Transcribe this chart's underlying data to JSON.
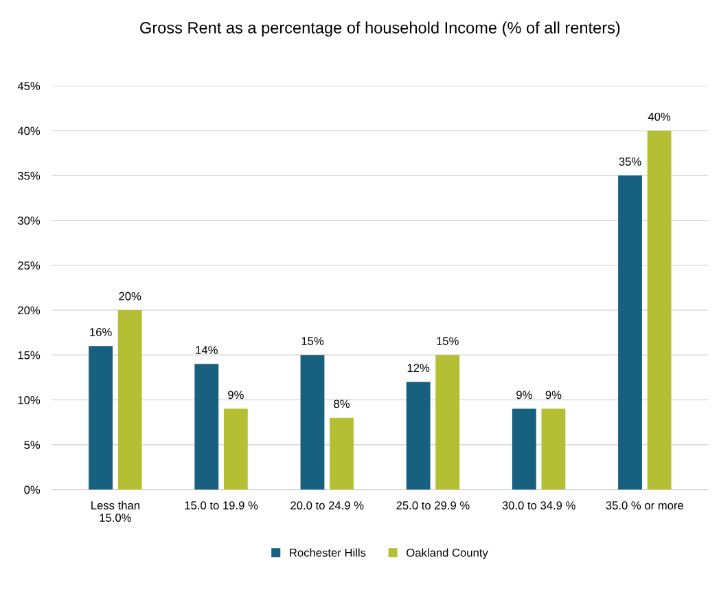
{
  "chart_data": {
    "type": "bar",
    "title": "Gross Rent as a percentage of household Income (% of all renters)",
    "categories": [
      "Less than\n15.0%",
      "15.0 to 19.9 %",
      "20.0 to 24.9 %",
      "25.0 to 29.9 %",
      "30.0 to 34.9 %",
      "35.0 % or more"
    ],
    "series": [
      {
        "name": "Rochester Hills",
        "color": "#17607f",
        "values": [
          16,
          14,
          15,
          12,
          9,
          35
        ],
        "value_labels": [
          "16%",
          "14%",
          "15%",
          "12%",
          "9%",
          "35%"
        ]
      },
      {
        "name": "Oakland County",
        "color": "#b5bf34",
        "values": [
          20,
          9,
          8,
          15,
          9,
          40
        ],
        "value_labels": [
          "20%",
          "9%",
          "8%",
          "15%",
          "9%",
          "40%"
        ]
      }
    ],
    "ylim": [
      0,
      45
    ],
    "yticks": [
      {
        "value": 0,
        "label": "0%"
      },
      {
        "value": 5,
        "label": "5%"
      },
      {
        "value": 10,
        "label": "10%"
      },
      {
        "value": 15,
        "label": "15%"
      },
      {
        "value": 20,
        "label": "20%"
      },
      {
        "value": 25,
        "label": "25%"
      },
      {
        "value": 30,
        "label": "30%"
      },
      {
        "value": 35,
        "label": "35%"
      },
      {
        "value": 40,
        "label": "40%"
      },
      {
        "value": 45,
        "label": "45%"
      }
    ],
    "grid": "y",
    "legend": "bottom"
  }
}
